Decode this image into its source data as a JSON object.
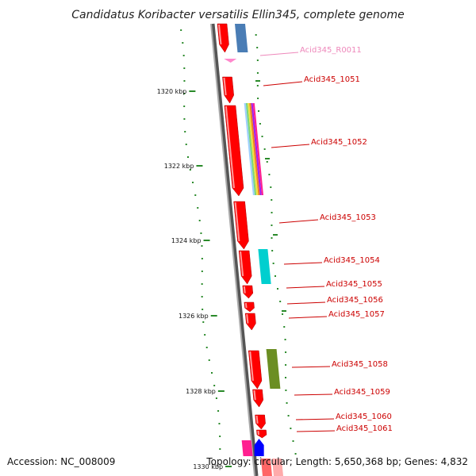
{
  "title": "Candidatus Koribacter versatilis Ellin345, complete genome",
  "footer": {
    "accession": "Accession: NC_008009",
    "topology": "Topology: circular; Length: 5,650,368 bp; Genes: 4,832"
  },
  "colors": {
    "backbone": "#888888",
    "forward_gene": "#ff0000",
    "rrna": "#ff88cc",
    "tick": "#2a8a2a",
    "label": "#cc0000",
    "label_light": "#ee88bb"
  },
  "ticks": [
    "1320 kbp",
    "1322 kbp",
    "1324 kbp",
    "1326 kbp",
    "1328 kbp",
    "1330 kbp"
  ],
  "genes": [
    {
      "name": "Acid345_R0011",
      "kind": "rrna"
    },
    {
      "name": "Acid345_1051",
      "kind": "cds"
    },
    {
      "name": "Acid345_1052",
      "kind": "cds"
    },
    {
      "name": "Acid345_1053",
      "kind": "cds"
    },
    {
      "name": "Acid345_1054",
      "kind": "cds"
    },
    {
      "name": "Acid345_1055",
      "kind": "cds"
    },
    {
      "name": "Acid345_1056",
      "kind": "cds"
    },
    {
      "name": "Acid345_1057",
      "kind": "cds"
    },
    {
      "name": "Acid345_1058",
      "kind": "cds"
    },
    {
      "name": "Acid345_1059",
      "kind": "cds"
    },
    {
      "name": "Acid345_1060",
      "kind": "cds"
    },
    {
      "name": "Acid345_1061",
      "kind": "cds"
    }
  ]
}
